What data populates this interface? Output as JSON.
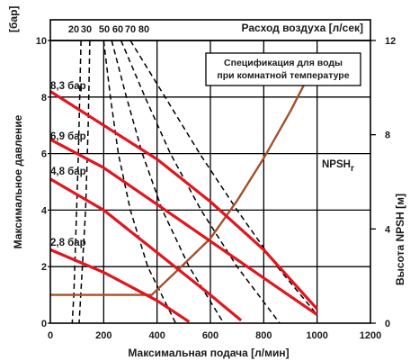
{
  "chart_data": {
    "type": "line",
    "xlabel": "Максимальная подача [л/мин]",
    "ylabel": "Максимальное давление",
    "y_unit_label": "[бар]",
    "y2label": "Высота NPSH [м]",
    "top_axis_label": "Расход воздуха [л/сек]",
    "annotation": "Спецификация для воды\nпри комнатной температуре",
    "xlim": [
      0,
      1200
    ],
    "ylim": [
      0,
      10
    ],
    "y2lim": [
      0,
      12
    ],
    "x_ticks": [
      0,
      200,
      400,
      600,
      800,
      1000,
      1200
    ],
    "y_ticks": [
      0,
      2,
      4,
      6,
      8,
      10
    ],
    "y2_ticks": [
      0,
      4,
      8,
      12
    ],
    "grid": true,
    "pressure_series": [
      {
        "name": "8,3 бар",
        "x": [
          0,
          400,
          600,
          800,
          1000
        ],
        "y": [
          8.2,
          5.8,
          4.3,
          2.6,
          0.5
        ]
      },
      {
        "name": "6,9 бар",
        "x": [
          0,
          200,
          400,
          600,
          800,
          1000
        ],
        "y": [
          6.5,
          5.5,
          4.2,
          2.9,
          1.6,
          0.3
        ]
      },
      {
        "name": "4,8 бар",
        "x": [
          0,
          200,
          400,
          600,
          715
        ],
        "y": [
          5.1,
          4.0,
          2.5,
          1.0,
          0.1
        ]
      },
      {
        "name": "2,8 бар",
        "x": [
          0,
          200,
          400,
          520
        ],
        "y": [
          2.6,
          1.8,
          0.8,
          0.05
        ]
      }
    ],
    "npsh_series": {
      "name": "NPSHr",
      "axis": "y2",
      "x": [
        0,
        380,
        500,
        600,
        700,
        800,
        900,
        1000
      ],
      "y": [
        1.2,
        1.2,
        2.5,
        3.6,
        5.2,
        7.0,
        9.0,
        11.2
      ]
    },
    "air_flow_ticks": [
      "20",
      "30",
      "50",
      "60",
      "70",
      "80"
    ],
    "air_flow_curves": [
      {
        "name": "20",
        "x": [
          115,
          105,
          95,
          88,
          82
        ],
        "y": [
          10,
          6,
          3,
          1,
          0
        ]
      },
      {
        "name": "30",
        "x": [
          148,
          142,
          132,
          120,
          108
        ],
        "y": [
          10,
          7,
          4,
          2,
          0
        ]
      },
      {
        "name": "50",
        "x": [
          200,
          225,
          255,
          300,
          365,
          470
        ],
        "y": [
          10,
          8,
          6,
          4,
          2,
          0
        ]
      },
      {
        "name": "60",
        "x": [
          230,
          285,
          345,
          420,
          520,
          650
        ],
        "y": [
          10,
          8,
          6,
          4,
          2,
          0
        ]
      },
      {
        "name": "70",
        "x": [
          265,
          355,
          450,
          565,
          700,
          860
        ],
        "y": [
          10,
          8,
          6,
          4,
          2,
          0
        ]
      },
      {
        "name": "80",
        "x": [
          300,
          430,
          560,
          700,
          850,
          1000
        ],
        "y": [
          10,
          8,
          6,
          4,
          2,
          0.3
        ]
      }
    ],
    "colors": {
      "pressure": "#e0161f",
      "npsh": "#a0522d",
      "air": "#000000",
      "grid": "#000000"
    }
  }
}
